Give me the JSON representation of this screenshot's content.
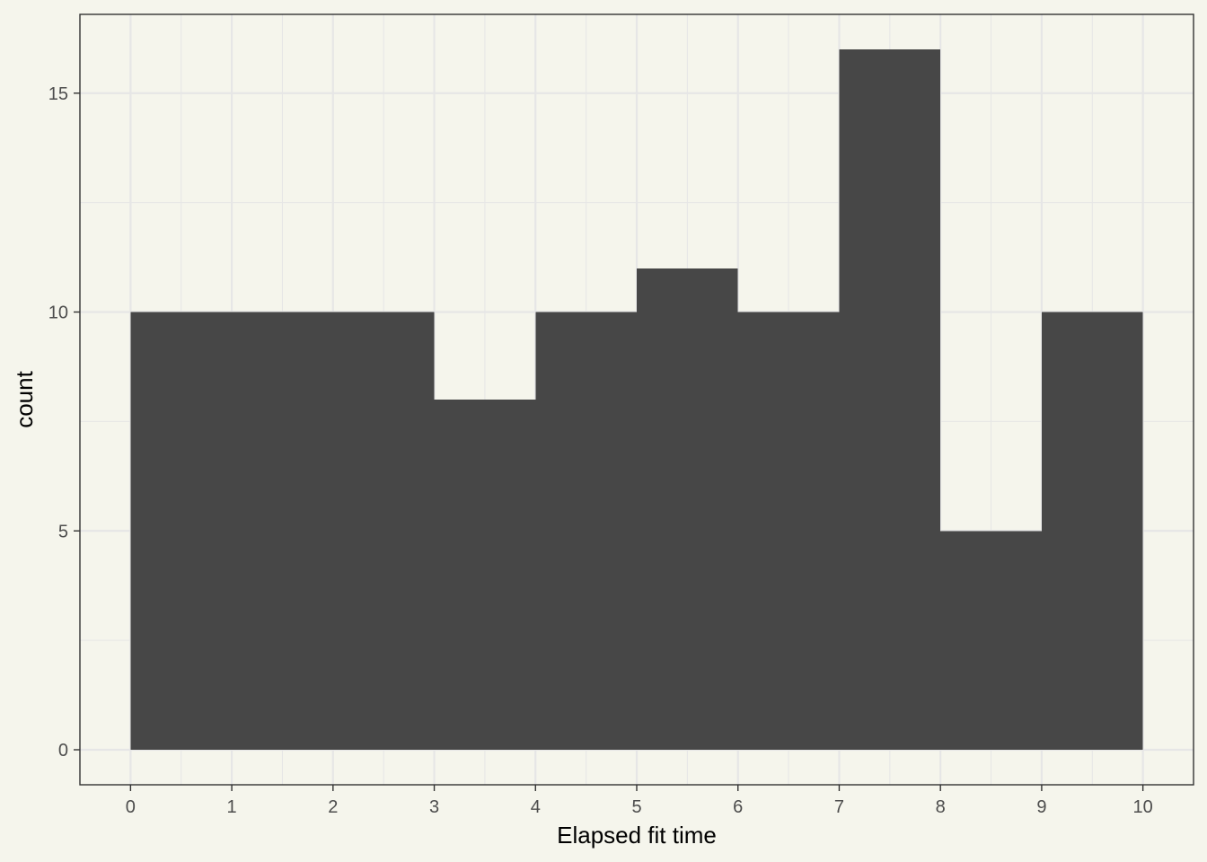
{
  "chart_data": {
    "type": "bar",
    "subtype": "histogram",
    "title": "",
    "xlabel": "Elapsed fit time",
    "ylabel": "count",
    "bins": [
      {
        "x0": 0,
        "x1": 1,
        "count": 10
      },
      {
        "x0": 1,
        "x1": 2,
        "count": 10
      },
      {
        "x0": 2,
        "x1": 3,
        "count": 10
      },
      {
        "x0": 3,
        "x1": 4,
        "count": 8
      },
      {
        "x0": 4,
        "x1": 5,
        "count": 10
      },
      {
        "x0": 5,
        "x1": 6,
        "count": 11
      },
      {
        "x0": 6,
        "x1": 7,
        "count": 10
      },
      {
        "x0": 7,
        "x1": 8,
        "count": 16
      },
      {
        "x0": 8,
        "x1": 9,
        "count": 5
      },
      {
        "x0": 9,
        "x1": 10,
        "count": 10
      }
    ],
    "xlim": [
      -0.5,
      10.5
    ],
    "ylim": [
      -0.8,
      16.8
    ],
    "x_ticks": [
      0,
      1,
      2,
      3,
      4,
      5,
      6,
      7,
      8,
      9,
      10
    ],
    "y_ticks": [
      0,
      5,
      10,
      15
    ],
    "grid": true,
    "legend": "none",
    "colors": {
      "background": "#f5f5ec",
      "panel": "#f5f5ec",
      "grid": "#e6e6e6",
      "bar": "#474747",
      "border": "#333333"
    }
  }
}
